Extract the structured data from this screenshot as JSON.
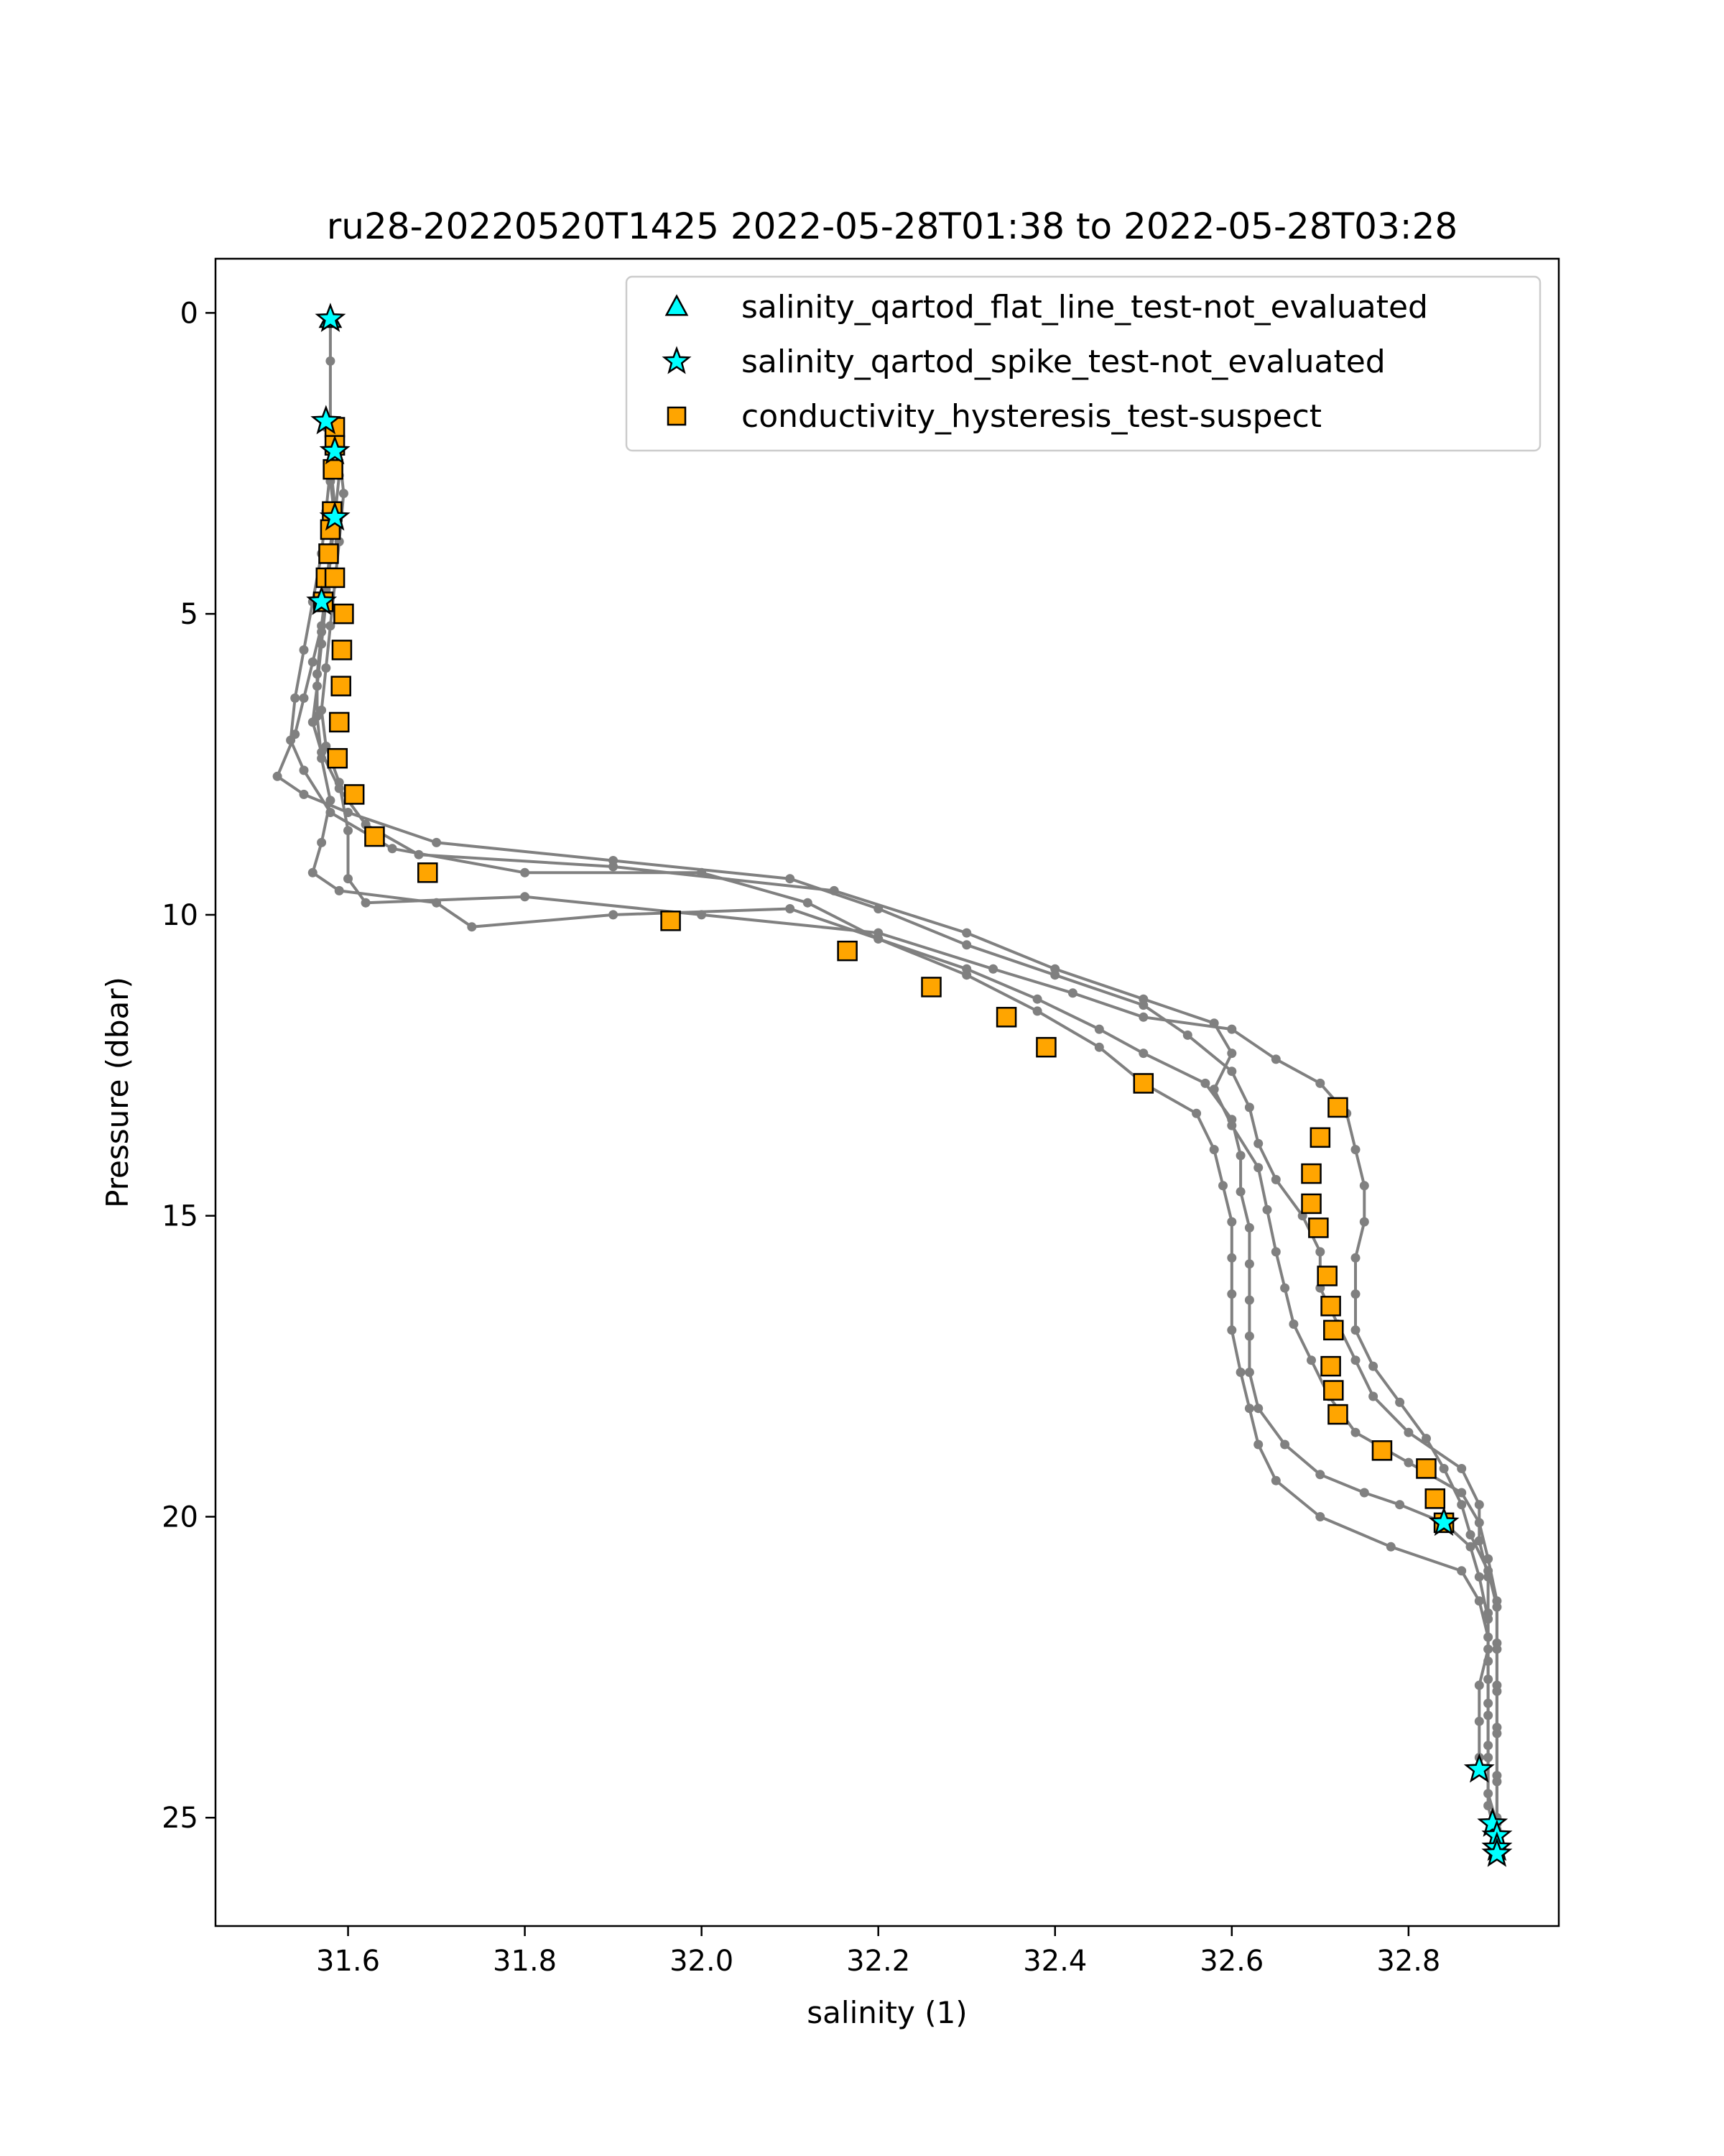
{
  "chart_data": {
    "type": "scatter",
    "title": "ru28-20220520T1425 2022-05-28T01:38 to 2022-05-28T03:28",
    "xlabel": "salinity (1)",
    "ylabel": "Pressure (dbar)",
    "xlim": [
      31.45,
      32.97
    ],
    "ylim": [
      26.8,
      -0.9
    ],
    "y_inverted": true,
    "grid": false,
    "legend_position": "upper right",
    "x_ticks": [
      31.6,
      31.8,
      32.0,
      32.2,
      32.4,
      32.6,
      32.8
    ],
    "x_tick_labels": [
      "31.6",
      "31.8",
      "32.0",
      "32.2",
      "32.4",
      "32.6",
      "32.8"
    ],
    "y_ticks": [
      0,
      5,
      10,
      15,
      20,
      25
    ],
    "y_tick_labels": [
      "0",
      "5",
      "10",
      "15",
      "20",
      "25"
    ],
    "colors": {
      "profile_line": "#808080",
      "flat_line_flag": "#00ffff",
      "spike_flag": "#00ffff",
      "hysteresis_flag": "#ffa500",
      "marker_edge": "#000000"
    },
    "profile_line": {
      "color": "#808080",
      "profiles": [
        [
          [
            31.58,
            0.1
          ],
          [
            31.58,
            0.8
          ],
          [
            31.58,
            1.8
          ],
          [
            31.585,
            2.2
          ],
          [
            31.58,
            2.8
          ],
          [
            31.585,
            3.4
          ],
          [
            31.58,
            4.0
          ],
          [
            31.575,
            4.6
          ],
          [
            31.57,
            5.2
          ],
          [
            31.56,
            5.8
          ],
          [
            31.55,
            6.4
          ],
          [
            31.54,
            7.0
          ],
          [
            31.52,
            7.7
          ],
          [
            31.55,
            8.0
          ],
          [
            31.6,
            8.3
          ],
          [
            31.7,
            8.8
          ],
          [
            31.9,
            9.1
          ],
          [
            32.1,
            9.4
          ],
          [
            32.2,
            9.9
          ],
          [
            32.3,
            10.5
          ],
          [
            32.4,
            11.0
          ],
          [
            32.5,
            11.5
          ],
          [
            32.55,
            12.0
          ],
          [
            32.6,
            12.6
          ],
          [
            32.62,
            13.2
          ],
          [
            32.63,
            13.8
          ],
          [
            32.65,
            14.4
          ],
          [
            32.68,
            15.0
          ],
          [
            32.7,
            15.6
          ],
          [
            32.7,
            16.2
          ],
          [
            32.72,
            16.8
          ],
          [
            32.74,
            17.4
          ],
          [
            32.76,
            18.0
          ],
          [
            32.8,
            18.6
          ],
          [
            32.86,
            19.2
          ],
          [
            32.88,
            19.8
          ],
          [
            32.88,
            20.4
          ],
          [
            32.89,
            21.0
          ],
          [
            32.89,
            21.6
          ],
          [
            32.89,
            22.2
          ],
          [
            32.88,
            22.8
          ],
          [
            32.88,
            23.4
          ],
          [
            32.88,
            24.0
          ],
          [
            32.88,
            24.2
          ]
        ],
        [
          [
            31.575,
            1.9
          ],
          [
            31.58,
            2.6
          ],
          [
            31.575,
            3.3
          ],
          [
            31.57,
            4.0
          ],
          [
            31.56,
            4.8
          ],
          [
            31.55,
            5.6
          ],
          [
            31.54,
            6.4
          ],
          [
            31.535,
            7.1
          ],
          [
            31.55,
            7.6
          ],
          [
            31.58,
            8.3
          ],
          [
            31.65,
            8.9
          ],
          [
            31.8,
            9.3
          ],
          [
            32.0,
            9.3
          ],
          [
            32.12,
            9.8
          ],
          [
            32.2,
            10.4
          ],
          [
            32.3,
            10.9
          ],
          [
            32.38,
            11.4
          ],
          [
            32.45,
            11.9
          ],
          [
            32.5,
            12.3
          ],
          [
            32.57,
            12.8
          ],
          [
            32.6,
            13.4
          ],
          [
            32.61,
            14.0
          ],
          [
            32.61,
            14.6
          ],
          [
            32.62,
            15.2
          ],
          [
            32.62,
            15.8
          ],
          [
            32.62,
            16.4
          ],
          [
            32.62,
            17.0
          ],
          [
            32.62,
            17.6
          ],
          [
            32.63,
            18.2
          ],
          [
            32.66,
            18.8
          ],
          [
            32.7,
            19.3
          ],
          [
            32.75,
            19.6
          ],
          [
            32.79,
            19.8
          ],
          [
            32.84,
            20.1
          ],
          [
            32.87,
            20.5
          ],
          [
            32.88,
            21.0
          ],
          [
            32.89,
            21.7
          ],
          [
            32.89,
            22.4
          ],
          [
            32.89,
            23.1
          ],
          [
            32.89,
            23.8
          ],
          [
            32.89,
            24.6
          ],
          [
            32.9,
            25.1
          ]
        ],
        [
          [
            31.585,
            2.1
          ],
          [
            31.59,
            2.7
          ],
          [
            31.585,
            3.4
          ],
          [
            31.58,
            4.1
          ],
          [
            31.575,
            4.8
          ],
          [
            31.57,
            5.5
          ],
          [
            31.565,
            6.2
          ],
          [
            31.56,
            6.8
          ],
          [
            31.57,
            7.3
          ],
          [
            31.59,
            7.9
          ],
          [
            31.62,
            8.5
          ],
          [
            31.68,
            9.0
          ],
          [
            31.9,
            9.2
          ],
          [
            32.15,
            9.6
          ],
          [
            32.3,
            10.3
          ],
          [
            32.4,
            10.9
          ],
          [
            32.5,
            11.4
          ],
          [
            32.58,
            11.8
          ],
          [
            32.6,
            12.3
          ],
          [
            32.58,
            12.9
          ],
          [
            32.6,
            13.5
          ],
          [
            32.63,
            14.2
          ],
          [
            32.64,
            14.9
          ],
          [
            32.65,
            15.6
          ],
          [
            32.66,
            16.2
          ],
          [
            32.67,
            16.8
          ],
          [
            32.69,
            17.4
          ],
          [
            32.71,
            18.0
          ],
          [
            32.74,
            18.6
          ],
          [
            32.8,
            19.1
          ],
          [
            32.86,
            19.6
          ],
          [
            32.88,
            20.1
          ],
          [
            32.89,
            20.7
          ],
          [
            32.9,
            21.4
          ],
          [
            32.9,
            22.1
          ],
          [
            32.9,
            22.8
          ],
          [
            32.9,
            23.5
          ],
          [
            32.9,
            24.3
          ],
          [
            32.9,
            25.0
          ],
          [
            32.9,
            25.5
          ]
        ],
        [
          [
            31.59,
            2.3
          ],
          [
            31.595,
            3.0
          ],
          [
            31.59,
            3.8
          ],
          [
            31.585,
            4.5
          ],
          [
            31.58,
            5.2
          ],
          [
            31.575,
            5.9
          ],
          [
            31.57,
            6.6
          ],
          [
            31.575,
            7.2
          ],
          [
            31.59,
            7.8
          ],
          [
            31.6,
            8.6
          ],
          [
            31.6,
            9.4
          ],
          [
            31.62,
            9.8
          ],
          [
            31.8,
            9.7
          ],
          [
            32.0,
            10.0
          ],
          [
            32.2,
            10.3
          ],
          [
            32.33,
            10.9
          ],
          [
            32.42,
            11.3
          ],
          [
            32.5,
            11.7
          ],
          [
            32.6,
            11.9
          ],
          [
            32.65,
            12.4
          ],
          [
            32.7,
            12.8
          ],
          [
            32.73,
            13.3
          ],
          [
            32.74,
            13.9
          ],
          [
            32.75,
            14.5
          ],
          [
            32.75,
            15.1
          ],
          [
            32.74,
            15.7
          ],
          [
            32.74,
            16.3
          ],
          [
            32.74,
            16.9
          ],
          [
            32.76,
            17.5
          ],
          [
            32.79,
            18.1
          ],
          [
            32.82,
            18.7
          ],
          [
            32.84,
            19.2
          ],
          [
            32.86,
            19.8
          ],
          [
            32.87,
            20.3
          ],
          [
            32.89,
            20.9
          ],
          [
            32.9,
            21.5
          ],
          [
            32.9,
            22.2
          ],
          [
            32.9,
            22.9
          ],
          [
            32.9,
            23.6
          ],
          [
            32.9,
            24.4
          ],
          [
            32.9,
            25.2
          ],
          [
            32.9,
            25.6
          ]
        ],
        [
          [
            31.58,
            2.5
          ],
          [
            31.585,
            3.2
          ],
          [
            31.58,
            3.9
          ],
          [
            31.575,
            4.6
          ],
          [
            31.57,
            5.3
          ],
          [
            31.565,
            6.0
          ],
          [
            31.565,
            6.7
          ],
          [
            31.57,
            7.4
          ],
          [
            31.58,
            8.1
          ],
          [
            31.57,
            8.8
          ],
          [
            31.56,
            9.3
          ],
          [
            31.59,
            9.6
          ],
          [
            31.7,
            9.8
          ],
          [
            31.74,
            10.2
          ],
          [
            31.9,
            10.0
          ],
          [
            32.1,
            9.9
          ],
          [
            32.2,
            10.4
          ],
          [
            32.3,
            11.0
          ],
          [
            32.38,
            11.6
          ],
          [
            32.45,
            12.2
          ],
          [
            32.5,
            12.8
          ],
          [
            32.56,
            13.3
          ],
          [
            32.58,
            13.9
          ],
          [
            32.59,
            14.5
          ],
          [
            32.6,
            15.1
          ],
          [
            32.6,
            15.7
          ],
          [
            32.6,
            16.3
          ],
          [
            32.6,
            16.9
          ],
          [
            32.61,
            17.6
          ],
          [
            32.62,
            18.2
          ],
          [
            32.63,
            18.8
          ],
          [
            32.65,
            19.4
          ],
          [
            32.7,
            20.0
          ],
          [
            32.78,
            20.5
          ],
          [
            32.86,
            20.9
          ],
          [
            32.88,
            21.4
          ],
          [
            32.89,
            22.0
          ],
          [
            32.89,
            22.7
          ],
          [
            32.89,
            23.3
          ],
          [
            32.89,
            24.0
          ],
          [
            32.89,
            24.8
          ],
          [
            32.9,
            25.4
          ]
        ]
      ]
    },
    "series": [
      {
        "name": "salinity_qartod_flat_line_test-not_evaluated",
        "marker": "triangle",
        "color": "#00ffff",
        "points": [
          [
            31.58,
            0.1
          ]
        ]
      },
      {
        "name": "salinity_qartod_spike_test-not_evaluated",
        "marker": "star",
        "color": "#00ffff",
        "points": [
          [
            31.58,
            0.1
          ],
          [
            31.575,
            1.8
          ],
          [
            31.585,
            2.3
          ],
          [
            31.585,
            3.4
          ],
          [
            31.57,
            4.8
          ],
          [
            32.84,
            20.1
          ],
          [
            32.88,
            24.2
          ],
          [
            32.895,
            25.1
          ],
          [
            32.9,
            25.3
          ],
          [
            32.9,
            25.5
          ],
          [
            32.9,
            25.6
          ]
        ]
      },
      {
        "name": "conductivity_hysteresis_test-suspect",
        "marker": "square",
        "color": "#ffa500",
        "points": [
          [
            31.585,
            1.9
          ],
          [
            31.585,
            2.2
          ],
          [
            31.583,
            2.6
          ],
          [
            31.582,
            3.3
          ],
          [
            31.58,
            3.6
          ],
          [
            31.578,
            4.0
          ],
          [
            31.575,
            4.4
          ],
          [
            31.585,
            4.4
          ],
          [
            31.572,
            4.8
          ],
          [
            31.595,
            5.0
          ],
          [
            31.593,
            5.6
          ],
          [
            31.592,
            6.2
          ],
          [
            31.59,
            6.8
          ],
          [
            31.588,
            7.4
          ],
          [
            31.607,
            8.0
          ],
          [
            31.63,
            8.7
          ],
          [
            31.69,
            9.3
          ],
          [
            31.965,
            10.1
          ],
          [
            32.165,
            10.6
          ],
          [
            32.26,
            11.2
          ],
          [
            32.345,
            11.7
          ],
          [
            32.39,
            12.2
          ],
          [
            32.5,
            12.8
          ],
          [
            32.72,
            13.2
          ],
          [
            32.7,
            13.7
          ],
          [
            32.69,
            14.3
          ],
          [
            32.69,
            14.8
          ],
          [
            32.698,
            15.2
          ],
          [
            32.708,
            16.0
          ],
          [
            32.712,
            16.5
          ],
          [
            32.715,
            16.9
          ],
          [
            32.712,
            17.5
          ],
          [
            32.715,
            17.9
          ],
          [
            32.72,
            18.3
          ],
          [
            32.77,
            18.9
          ],
          [
            32.82,
            19.2
          ],
          [
            32.83,
            19.7
          ],
          [
            32.84,
            20.1
          ]
        ]
      }
    ]
  }
}
